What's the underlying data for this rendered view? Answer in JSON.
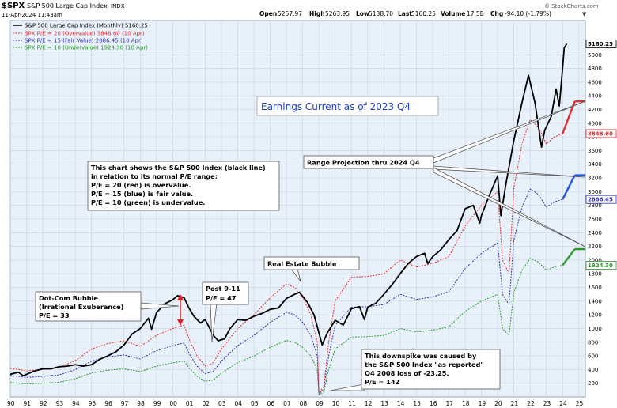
{
  "header": {
    "symbol": "$SPX",
    "name": "S&P 500 Large Cap Index",
    "exchange": "INDX",
    "datetime": "11-Apr-2024 11:43am",
    "branding": "© StockCharts.com",
    "quote": {
      "open_label": "Open",
      "open": "5257.97",
      "high_label": "High",
      "high": "5263.95",
      "low_label": "Low",
      "low": "5138.70",
      "last_label": "Last",
      "last": "5160.25",
      "volume_label": "Volume",
      "volume": "17.5B",
      "chg_label": "Chg",
      "chg": "-94.10 (-1.79%)"
    }
  },
  "legend": [
    {
      "text": "S&P 500 Large Cap Index (Monthly) 5160.25",
      "color": "#000000"
    },
    {
      "text": "SPX P/E = 20 (Overvalue) 3848.60 (10 Apr)",
      "color": "#e03030"
    },
    {
      "text": "SPX P/E = 15 (Fair Value) 2886.45 (10 Apr)",
      "color": "#3333aa"
    },
    {
      "text": "SPX P/E = 10 (Undervalue) 1924.30 (10 Apr)",
      "color": "#2a9a2a"
    }
  ],
  "annotations": {
    "earnings": "Earnings Current as of 2023 Q4",
    "info_lines": [
      "This chart shows the S&P 500 Index (black line)",
      "in relation to its normal P/E range:",
      "P/E = 20 (red) is overvalue.",
      "P/E = 15 (blue) is fair value.",
      "P/E = 10 (green) is undervalue."
    ],
    "range_projection": "Range Projection thru 2024 Q4",
    "dotcom_lines": [
      "Dot-Com Bubble",
      "(Irrational Exuberance)",
      "P/E = 33"
    ],
    "post911_lines": [
      "Post 9-11",
      "P/E = 47"
    ],
    "real_estate": "Real Estate Bubble",
    "downspike_lines": [
      "This downspike was caused by",
      "the S&P 500 Index \"as reported\"",
      "Q4 2008 loss of -23.25.",
      "P/E = 142"
    ]
  },
  "value_tags": [
    {
      "value": "5160.25",
      "color": "#000000"
    },
    {
      "value": "3848.60",
      "color": "#e03030"
    },
    {
      "value": "2886.45",
      "color": "#3333aa"
    },
    {
      "value": "1924.30",
      "color": "#2a9a2a"
    }
  ],
  "projections": [
    {
      "name": "P/E = 20",
      "color": "#e03030",
      "from": [
        2024.0,
        3848.6
      ],
      "to": [
        2024.75,
        4320
      ]
    },
    {
      "name": "P/E = 15",
      "color": "#2255dd",
      "from": [
        2024.0,
        2886.45
      ],
      "to": [
        2024.75,
        3240
      ]
    },
    {
      "name": "P/E = 10",
      "color": "#2a9a2a",
      "from": [
        2024.0,
        1924.3
      ],
      "to": [
        2024.75,
        2160
      ]
    }
  ],
  "chart_data": {
    "type": "line",
    "xlim": [
      1990.0,
      2025.4
    ],
    "ylim": [
      0,
      5500
    ],
    "grid": true,
    "legend_position": "top-left",
    "y_ticks": [
      200,
      400,
      600,
      800,
      1000,
      1200,
      1400,
      1600,
      1800,
      2000,
      2200,
      2400,
      2600,
      2800,
      3000,
      3200,
      3400,
      3600,
      3800,
      4000,
      4200,
      4400,
      4600,
      4800,
      5000
    ],
    "x_tick_labels": [
      "90",
      "91",
      "92",
      "93",
      "94",
      "95",
      "96",
      "97",
      "98",
      "99",
      "00",
      "01",
      "02",
      "03",
      "04",
      "05",
      "06",
      "07",
      "08",
      "09",
      "10",
      "11",
      "12",
      "13",
      "14",
      "15",
      "16",
      "17",
      "18",
      "19",
      "20",
      "21",
      "22",
      "23",
      "24",
      "25"
    ],
    "series": [
      {
        "name": "S&P 500 Large Cap Index (Monthly)",
        "color": "#000000",
        "x": [
          1990.0,
          1990.5,
          1990.8,
          1991.0,
          1991.5,
          1992.0,
          1992.5,
          1993.0,
          1993.5,
          1994.0,
          1994.5,
          1995.0,
          1995.5,
          1996.0,
          1996.5,
          1997.0,
          1997.5,
          1998.0,
          1998.5,
          1998.7,
          1999.0,
          1999.5,
          2000.0,
          2000.3,
          2000.7,
          2001.0,
          2001.3,
          2001.7,
          2002.0,
          2002.5,
          2002.8,
          2003.2,
          2003.5,
          2004.0,
          2004.5,
          2005.0,
          2005.5,
          2006.0,
          2006.5,
          2007.0,
          2007.5,
          2007.8,
          2008.3,
          2008.7,
          2009.2,
          2009.5,
          2010.0,
          2010.5,
          2011.0,
          2011.5,
          2011.8,
          2012.0,
          2012.5,
          2013.0,
          2013.5,
          2014.0,
          2014.5,
          2015.0,
          2015.5,
          2015.7,
          2016.0,
          2016.5,
          2017.0,
          2017.5,
          2018.0,
          2018.5,
          2018.9,
          2019.0,
          2019.5,
          2020.0,
          2020.2,
          2020.5,
          2021.0,
          2021.5,
          2021.9,
          2022.3,
          2022.7,
          2022.9,
          2023.3,
          2023.6,
          2023.8,
          2024.0,
          2024.1,
          2024.25
        ],
        "y": [
          330,
          360,
          310,
          330,
          380,
          410,
          410,
          440,
          450,
          470,
          450,
          470,
          550,
          600,
          660,
          760,
          920,
          1000,
          1150,
          990,
          1230,
          1360,
          1420,
          1480,
          1450,
          1300,
          1180,
          1080,
          1130,
          900,
          820,
          850,
          990,
          1130,
          1120,
          1180,
          1220,
          1280,
          1300,
          1440,
          1500,
          1530,
          1380,
          1200,
          760,
          930,
          1120,
          1050,
          1290,
          1320,
          1130,
          1310,
          1370,
          1500,
          1640,
          1800,
          1950,
          2050,
          2100,
          1950,
          2050,
          2150,
          2300,
          2430,
          2750,
          2800,
          2540,
          2650,
          2950,
          3230,
          2650,
          3100,
          3750,
          4300,
          4700,
          4300,
          3650,
          3900,
          4100,
          4500,
          4250,
          4800,
          5100,
          5160
        ]
      },
      {
        "name": "SPX P/E = 20 (Overvalue)",
        "color": "#e03030",
        "x": [
          1990.0,
          1991.0,
          1992.0,
          1993.0,
          1994.0,
          1995.0,
          1996.0,
          1997.0,
          1998.0,
          1999.0,
          2000.0,
          2000.7,
          2001.0,
          2001.5,
          2002.0,
          2002.5,
          2003.0,
          2004.0,
          2005.0,
          2006.0,
          2007.0,
          2007.5,
          2008.0,
          2008.5,
          2008.9,
          2009.0,
          2009.3,
          2009.6,
          2010.0,
          2011.0,
          2012.0,
          2013.0,
          2014.0,
          2015.0,
          2016.0,
          2017.0,
          2018.0,
          2019.0,
          2020.0,
          2020.3,
          2020.7,
          2021.0,
          2021.5,
          2022.0,
          2022.5,
          2023.0,
          2023.5,
          2024.0
        ],
        "y": [
          420,
          380,
          400,
          430,
          530,
          700,
          780,
          820,
          740,
          900,
          1000,
          1050,
          850,
          600,
          450,
          500,
          700,
          1000,
          1200,
          1450,
          1650,
          1600,
          1450,
          1200,
          800,
          60,
          150,
          800,
          1400,
          1750,
          1760,
          1800,
          2000,
          1900,
          1950,
          2050,
          2500,
          2800,
          3000,
          2000,
          1800,
          3050,
          3700,
          4050,
          3950,
          3700,
          3800,
          3850
        ]
      },
      {
        "name": "SPX P/E = 15 (Fair Value)",
        "color": "#3333aa",
        "x": [
          1990.0,
          1991.0,
          1992.0,
          1993.0,
          1994.0,
          1995.0,
          1996.0,
          1997.0,
          1998.0,
          1999.0,
          2000.0,
          2000.7,
          2001.0,
          2001.5,
          2002.0,
          2002.5,
          2003.0,
          2004.0,
          2005.0,
          2006.0,
          2007.0,
          2007.5,
          2008.0,
          2008.5,
          2008.9,
          2009.0,
          2009.3,
          2009.6,
          2010.0,
          2011.0,
          2012.0,
          2013.0,
          2014.0,
          2015.0,
          2016.0,
          2017.0,
          2018.0,
          2019.0,
          2020.0,
          2020.3,
          2020.7,
          2021.0,
          2021.5,
          2022.0,
          2022.5,
          2023.0,
          2023.5,
          2024.0
        ],
        "y": [
          315,
          285,
          300,
          322,
          398,
          525,
          585,
          615,
          555,
          675,
          750,
          788,
          638,
          450,
          338,
          375,
          525,
          750,
          900,
          1088,
          1238,
          1200,
          1088,
          900,
          600,
          45,
          113,
          600,
          1050,
          1313,
          1320,
          1350,
          1500,
          1425,
          1463,
          1538,
          1875,
          2100,
          2250,
          1500,
          1350,
          2288,
          2775,
          3038,
          2963,
          2775,
          2850,
          2886
        ]
      },
      {
        "name": "SPX P/E = 10 (Undervalue)",
        "color": "#2a9a2a",
        "x": [
          1990.0,
          1991.0,
          1992.0,
          1993.0,
          1994.0,
          1995.0,
          1996.0,
          1997.0,
          1998.0,
          1999.0,
          2000.0,
          2000.7,
          2001.0,
          2001.5,
          2002.0,
          2002.5,
          2003.0,
          2004.0,
          2005.0,
          2006.0,
          2007.0,
          2007.5,
          2008.0,
          2008.5,
          2008.9,
          2009.0,
          2009.3,
          2009.6,
          2010.0,
          2011.0,
          2012.0,
          2013.0,
          2014.0,
          2015.0,
          2016.0,
          2017.0,
          2018.0,
          2019.0,
          2020.0,
          2020.3,
          2020.7,
          2021.0,
          2021.5,
          2022.0,
          2022.5,
          2023.0,
          2023.5,
          2024.0
        ],
        "y": [
          210,
          190,
          200,
          215,
          265,
          350,
          390,
          410,
          370,
          450,
          500,
          525,
          425,
          300,
          225,
          250,
          350,
          500,
          600,
          725,
          825,
          800,
          725,
          600,
          400,
          30,
          75,
          400,
          700,
          875,
          880,
          900,
          1000,
          950,
          975,
          1025,
          1250,
          1400,
          1500,
          1000,
          900,
          1525,
          1850,
          2025,
          1975,
          1850,
          1900,
          1924
        ]
      }
    ]
  }
}
